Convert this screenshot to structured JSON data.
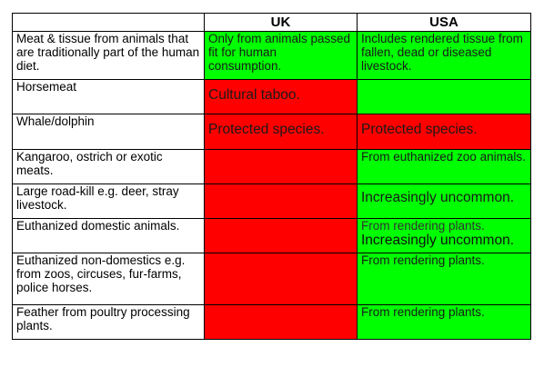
{
  "header": {
    "col0": "",
    "uk": "UK",
    "usa": "USA"
  },
  "rows": [
    {
      "label": "Meat & tissue from animals that are traditionally part of the human diet.",
      "uk": "Only from animals passed fit for human consumption.",
      "uk_color": "#00ff00",
      "usa": "Includes rendered tissue from fallen, dead or diseased livestock.",
      "usa_color": "#00ff00"
    },
    {
      "label": "Horsemeat",
      "uk": "Cultural taboo.",
      "uk_color": "#ff0000",
      "usa": "",
      "usa_color": "#00ff00"
    },
    {
      "label": "Whale/dolphin",
      "uk": "Protected species.",
      "uk_color": "#ff0000",
      "usa": "Protected species.",
      "usa_color": "#ff0000"
    },
    {
      "label": "Kangaroo, ostrich or exotic meats.",
      "uk": "",
      "uk_color": "#ff0000",
      "usa": "From euthanized zoo animals.",
      "usa_color": "#00ff00"
    },
    {
      "label": "Large road-kill e.g. deer, stray livestock.",
      "uk": "",
      "uk_color": "#ff0000",
      "usa": "Increasingly uncommon.",
      "usa_color": "#00ff00"
    },
    {
      "label": "Euthanized domestic animals.",
      "uk": "",
      "uk_color": "#ff0000",
      "usa": "From rendering plants.",
      "usa2": "Increasingly uncommon.",
      "usa_color": "#00ff00"
    },
    {
      "label": "Euthanized non-domestics e.g. from zoos, circuses, fur-farms, police horses.",
      "uk": "",
      "uk_color": "#ff0000",
      "usa": "From rendering plants.",
      "usa_color": "#00ff00"
    },
    {
      "label": "Feather from poultry processing plants.",
      "uk": "",
      "uk_color": "#ff0000",
      "usa": "From rendering plants.",
      "usa_color": "#00ff00"
    }
  ]
}
